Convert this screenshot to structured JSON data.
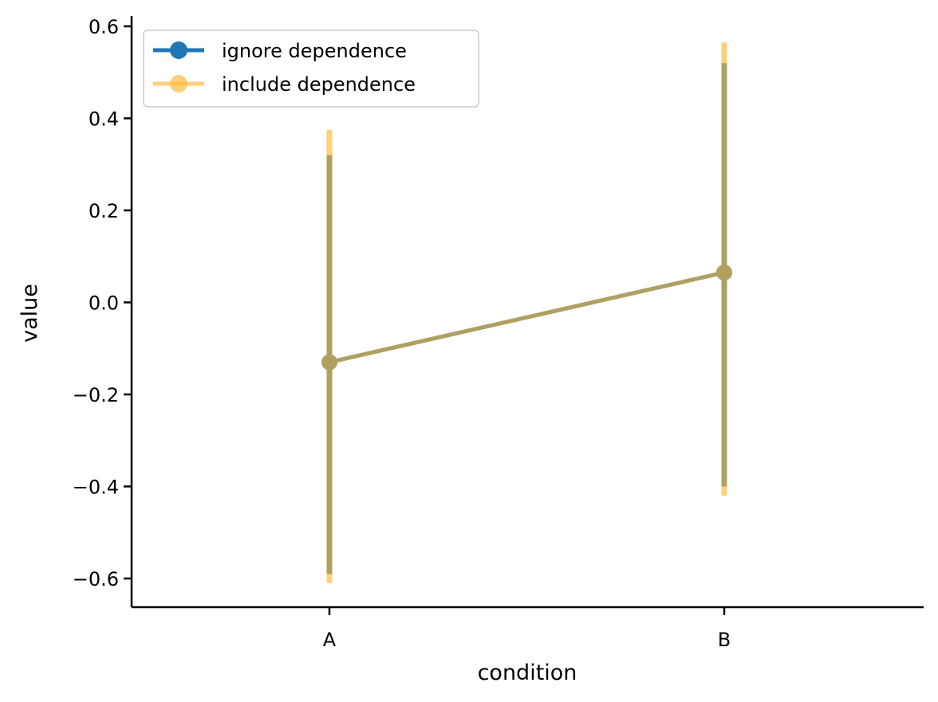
{
  "chart_data": {
    "type": "line",
    "title": "",
    "xlabel": "condition",
    "ylabel": "value",
    "categories": [
      "A",
      "B"
    ],
    "ylim": [
      -0.66,
      0.62
    ],
    "yticks": [
      -0.6,
      -0.4,
      -0.2,
      0.0,
      0.2,
      0.4,
      0.6
    ],
    "ytick_labels": [
      "−0.6",
      "−0.4",
      "−0.2",
      "0.0",
      "0.2",
      "0.4",
      "0.6"
    ],
    "grid": false,
    "legend_position": "top-left",
    "series": [
      {
        "name": "ignore dependence",
        "color": "#1f77b4",
        "values": [
          -0.13,
          0.065
        ],
        "error_low": [
          -0.59,
          -0.4
        ],
        "error_high": [
          0.32,
          0.52
        ]
      },
      {
        "name": "include dependence",
        "color": "#ffb733",
        "values": [
          -0.13,
          0.065
        ],
        "error_low": [
          -0.61,
          -0.42
        ],
        "error_high": [
          0.375,
          0.565
        ]
      }
    ]
  }
}
